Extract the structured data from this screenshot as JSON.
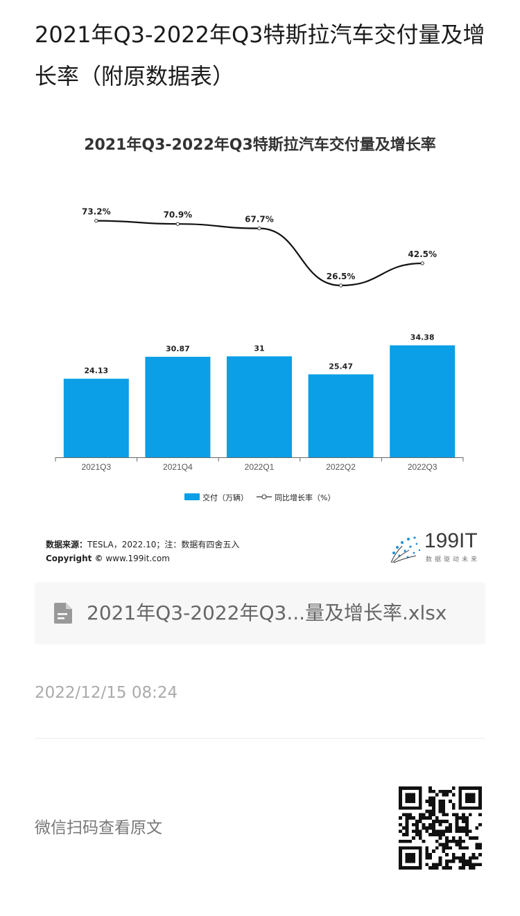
{
  "page": {
    "title": "2021年Q3-2022年Q3特斯拉汽车交付量及增长率（附原数据表）",
    "file_name": "2021年Q3-2022年Q3...量及增长率.xlsx",
    "date": "2022/12/15 08:24",
    "scan_text": "微信扫码查看原文"
  },
  "source": {
    "label": "数据来源：",
    "text": "TESLA，2022.10；注：数据有四舍五入",
    "copyright_label": "Copyright ©",
    "copyright_text": " www.199it.com"
  },
  "logo": {
    "text": "199IT",
    "sub": "数据驱动未来"
  },
  "colors": {
    "bar": "#0a9fe6",
    "line": "#111111",
    "axis": "#666666"
  },
  "chart_data": {
    "type": "bar",
    "title": "2021年Q3-2022年Q3特斯拉汽车交付量及增长率",
    "categories": [
      "2021Q3",
      "2021Q4",
      "2022Q1",
      "2022Q2",
      "2022Q3"
    ],
    "series": [
      {
        "name": "交付（万辆）",
        "type": "bar",
        "values": [
          24.13,
          30.87,
          31,
          25.47,
          34.38
        ],
        "labels": [
          "24.13",
          "30.87",
          "31",
          "25.47",
          "34.38"
        ]
      },
      {
        "name": "同比增长率（%）",
        "type": "line",
        "values": [
          73.2,
          70.9,
          67.7,
          26.5,
          42.5
        ],
        "labels": [
          "73.2%",
          "70.9%",
          "67.7%",
          "26.5%",
          "42.5%"
        ]
      }
    ],
    "legend": "bottom-center",
    "grid": false
  }
}
